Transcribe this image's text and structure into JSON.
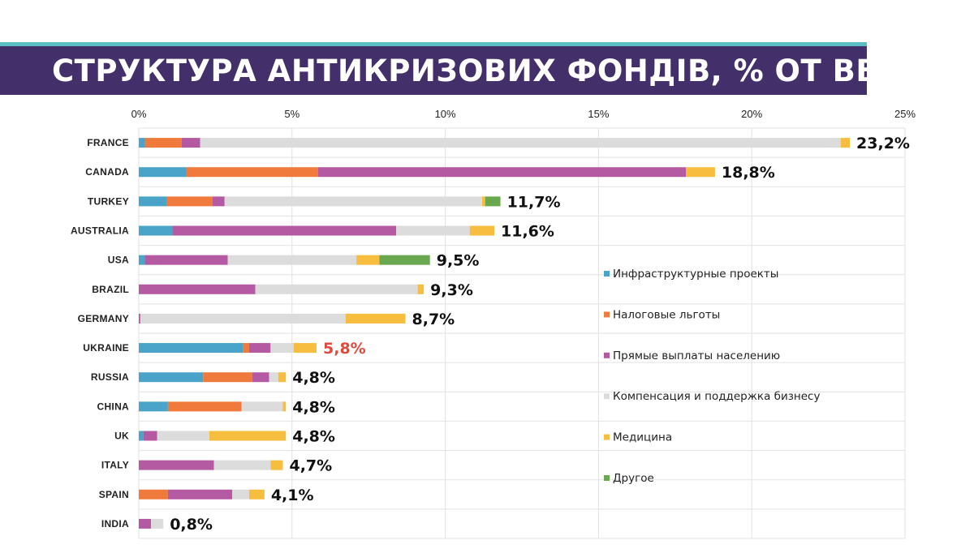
{
  "title": "СТРУКТУРА АНТИКРИЗОВИХ ФОНДІВ, % ОТ ВВП",
  "colors": {
    "banner": "#43306b",
    "top_line": "#5bbcc2",
    "grid": "#e2e2e2",
    "highlight": "#e04a3c",
    "text": "#111111"
  },
  "chart_data": {
    "type": "bar",
    "orientation": "horizontal",
    "stacked": true,
    "title": "СТРУКТУРА АНТИКРИЗОВИХ ФОНДІВ, % ОТ ВВП",
    "xlim": [
      0,
      25
    ],
    "x_ticks": [
      {
        "value": 0,
        "label": "0%"
      },
      {
        "value": 5,
        "label": "5%"
      },
      {
        "value": 10,
        "label": "10%"
      },
      {
        "value": 15,
        "label": "15%"
      },
      {
        "value": 20,
        "label": "20%"
      },
      {
        "value": 25,
        "label": "25%"
      }
    ],
    "grid": true,
    "legend_position": "right",
    "categories": [
      "FRANCE",
      "CANADA",
      "TURKEY",
      "AUSTRALIA",
      "USA",
      "BRAZIL",
      "GERMANY",
      "UKRAINE",
      "RUSSIA",
      "CHINA",
      "UK",
      "ITALY",
      "SPAIN",
      "INDIA"
    ],
    "totals": [
      "23,2%",
      "18,8%",
      "11,7%",
      "11,6%",
      "9,5%",
      "9,3%",
      "8,7%",
      "5,8%",
      "4,8%",
      "4,8%",
      "4,8%",
      "4,7%",
      "4,1%",
      "0,8%"
    ],
    "highlight_category": "UKRAINE",
    "series": [
      {
        "name": "Инфраструктурные проекты",
        "color": "#4aa3c8",
        "values": [
          0.2,
          1.55,
          0.9,
          1.1,
          0.2,
          0,
          0,
          3.4,
          2.1,
          0.95,
          0.15,
          0,
          0,
          0
        ]
      },
      {
        "name": "Налоговые льготы",
        "color": "#ef7a3c",
        "values": [
          1.2,
          4.3,
          1.5,
          0,
          0,
          0,
          0,
          0.2,
          1.6,
          2.4,
          0,
          0,
          0.95,
          0
        ]
      },
      {
        "name": "Прямые выплаты населению",
        "color": "#b45aa2",
        "values": [
          0.6,
          12.0,
          0.4,
          7.3,
          2.7,
          3.8,
          0.05,
          0.7,
          0.55,
          0,
          0.45,
          2.45,
          2.1,
          0.4
        ]
      },
      {
        "name": "Компенсация и поддержка бизнесу",
        "color": "#dcdcdc",
        "values": [
          20.9,
          0,
          8.4,
          2.4,
          4.2,
          5.3,
          6.7,
          0.75,
          0.3,
          1.35,
          1.7,
          1.85,
          0.55,
          0.4
        ]
      },
      {
        "name": "Медицина",
        "color": "#f6bd3e",
        "values": [
          0.3,
          0.95,
          0.1,
          0.8,
          0.75,
          0.2,
          1.95,
          0.75,
          0.25,
          0.1,
          2.5,
          0.4,
          0.5,
          0
        ]
      },
      {
        "name": "Другое",
        "color": "#6aa84f",
        "values": [
          0,
          0,
          0.5,
          0,
          1.65,
          0,
          0,
          0,
          0,
          0,
          0,
          0,
          0,
          0
        ]
      }
    ]
  }
}
